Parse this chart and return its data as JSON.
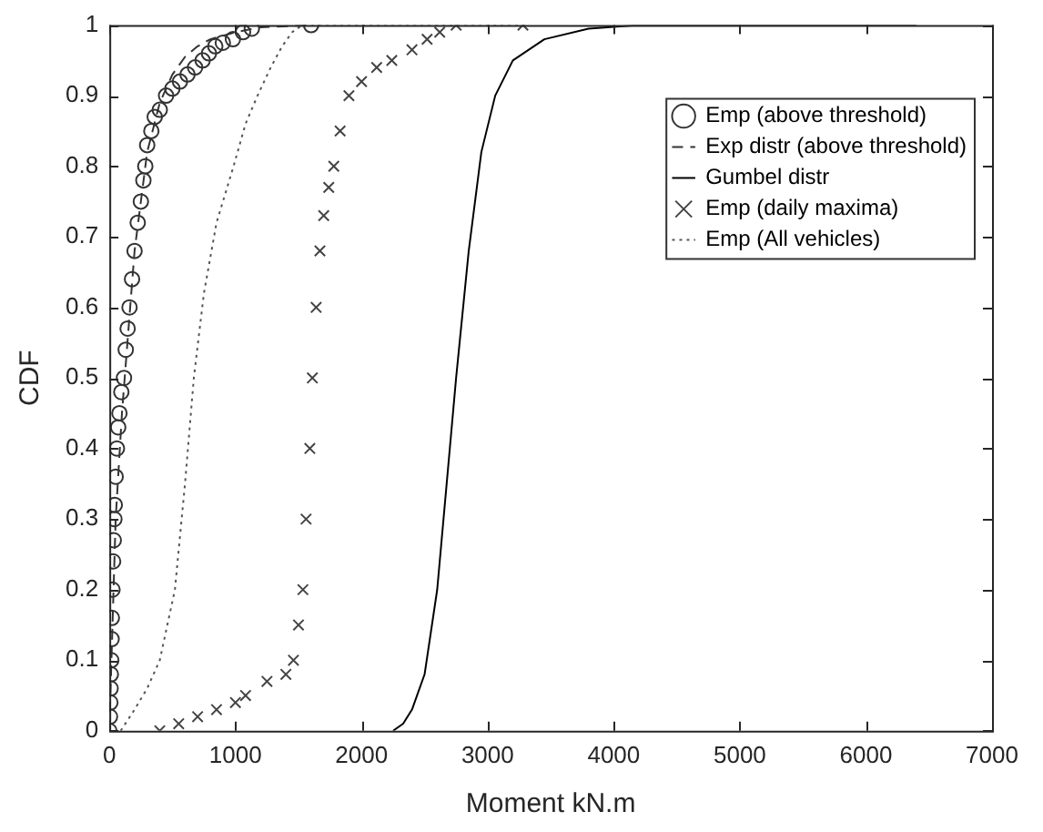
{
  "chart_data": {
    "type": "line",
    "xlabel": "Moment kN.m",
    "ylabel": "CDF",
    "xlim": [
      0,
      7000
    ],
    "ylim": [
      0,
      1
    ],
    "xticks": [
      0,
      1000,
      2000,
      3000,
      4000,
      5000,
      6000,
      7000
    ],
    "yticks": [
      0,
      0.1,
      0.2,
      0.3,
      0.4,
      0.5,
      0.6,
      0.7,
      0.8,
      0.9,
      1
    ],
    "grid": false,
    "legend": "top right",
    "series": [
      {
        "name": "Emp (above threshold)",
        "type": "scatter",
        "marker": "circle",
        "color": "#333333",
        "x": [
          0,
          5,
          8,
          10,
          12,
          15,
          18,
          20,
          25,
          30,
          35,
          40,
          43,
          50,
          60,
          70,
          80,
          95,
          116,
          130,
          145,
          160,
          180,
          200,
          225,
          250,
          270,
          285,
          300,
          333,
          360,
          400,
          450,
          500,
          560,
          620,
          680,
          740,
          790,
          840,
          900,
          980,
          1060,
          1130,
          1600
        ],
        "values": [
          0,
          0.02,
          0.04,
          0.06,
          0.08,
          0.1,
          0.13,
          0.16,
          0.2,
          0.24,
          0.27,
          0.3,
          0.32,
          0.36,
          0.4,
          0.43,
          0.45,
          0.48,
          0.5,
          0.54,
          0.57,
          0.6,
          0.64,
          0.68,
          0.72,
          0.75,
          0.78,
          0.8,
          0.83,
          0.85,
          0.87,
          0.88,
          0.9,
          0.91,
          0.92,
          0.93,
          0.94,
          0.95,
          0.96,
          0.97,
          0.975,
          0.98,
          0.99,
          0.995,
          1
        ]
      },
      {
        "name": "Exp distr (above threshold)",
        "type": "line",
        "marker": "none",
        "line_style": "dashed",
        "color": "#333333",
        "x": [
          0,
          50,
          100,
          200,
          300,
          400,
          500,
          600,
          700,
          800,
          1000,
          1200,
          1600
        ],
        "values": [
          0,
          0.3,
          0.45,
          0.68,
          0.82,
          0.89,
          0.93,
          0.955,
          0.97,
          0.98,
          0.99,
          0.997,
          1
        ]
      },
      {
        "name": "Gumbel distr",
        "type": "line",
        "marker": "none",
        "line_style": "solid",
        "color": "#000000",
        "x": [
          2250,
          2330,
          2400,
          2500,
          2600,
          2700,
          2750,
          2850,
          2950,
          3060,
          3200,
          3450,
          3800,
          4200,
          6400
        ],
        "values": [
          0,
          0.01,
          0.03,
          0.08,
          0.2,
          0.4,
          0.5,
          0.68,
          0.82,
          0.9,
          0.95,
          0.98,
          0.995,
          1,
          1
        ]
      },
      {
        "name": "Emp (daily maxima)",
        "type": "scatter",
        "marker": "cross",
        "color": "#444444",
        "x": [
          400,
          550,
          700,
          850,
          1000,
          1080,
          1250,
          1400,
          1460,
          1500,
          1535,
          1560,
          1590,
          1610,
          1640,
          1670,
          1700,
          1740,
          1780,
          1830,
          1900,
          2000,
          2120,
          2240,
          2400,
          2520,
          2620,
          2750,
          3280
        ],
        "values": [
          0,
          0.01,
          0.02,
          0.03,
          0.04,
          0.05,
          0.07,
          0.08,
          0.1,
          0.15,
          0.2,
          0.3,
          0.4,
          0.5,
          0.6,
          0.68,
          0.73,
          0.77,
          0.8,
          0.85,
          0.9,
          0.92,
          0.94,
          0.95,
          0.965,
          0.98,
          0.99,
          1,
          1
        ]
      },
      {
        "name": "Emp (All vehicles)",
        "type": "line",
        "marker": "none",
        "line_style": "dotted",
        "color": "#555555",
        "x": [
          90,
          200,
          300,
          400,
          520,
          600,
          670,
          750,
          850,
          985,
          1080,
          1175,
          1280,
          1370,
          1450,
          1530,
          3300
        ],
        "values": [
          0,
          0.03,
          0.06,
          0.1,
          0.2,
          0.35,
          0.5,
          0.62,
          0.72,
          0.8,
          0.86,
          0.9,
          0.94,
          0.97,
          0.99,
          1,
          1
        ]
      }
    ]
  }
}
